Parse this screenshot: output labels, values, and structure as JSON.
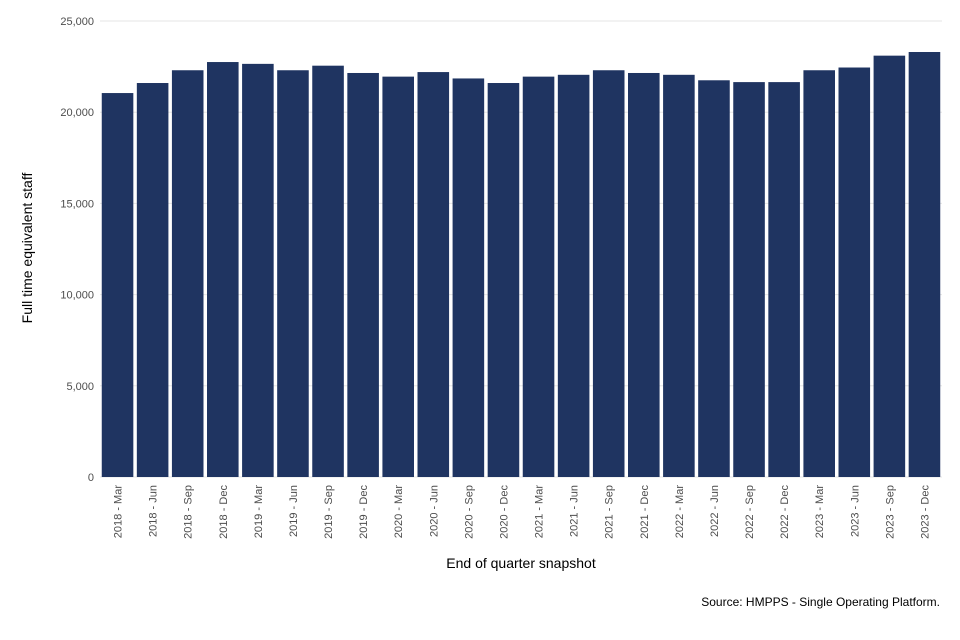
{
  "chart_data": {
    "type": "bar",
    "title": "",
    "xlabel": "End of quarter snapshot",
    "ylabel": "Full time equivalent staff",
    "source": "Source: HMPPS - Single Operating Platform.",
    "bar_color": "#1f3461",
    "grid": true,
    "ylim": [
      0,
      25000
    ],
    "yticks": [
      0,
      5000,
      10000,
      15000,
      20000,
      25000
    ],
    "ytick_labels": [
      "0",
      "5,000",
      "10,000",
      "15,000",
      "20,000",
      "25,000"
    ],
    "categories": [
      "2018 - Mar",
      "2018 - Jun",
      "2018 - Sep",
      "2018 - Dec",
      "2019 - Mar",
      "2019 - Jun",
      "2019 - Sep",
      "2019 - Dec",
      "2020 - Mar",
      "2020 - Jun",
      "2020 - Sep",
      "2020 - Dec",
      "2021 - Mar",
      "2021 - Jun",
      "2021 - Sep",
      "2021 - Dec",
      "2022 - Mar",
      "2022 - Jun",
      "2022 - Sep",
      "2022 - Dec",
      "2023 - Mar",
      "2023 - Jun",
      "2023 - Sep",
      "2023 - Dec"
    ],
    "values": [
      21050,
      21600,
      22300,
      22750,
      22650,
      22300,
      22550,
      22150,
      21950,
      22200,
      21850,
      21600,
      21950,
      22050,
      22300,
      22150,
      22050,
      21750,
      21650,
      21650,
      22300,
      22450,
      23100,
      23300
    ]
  }
}
